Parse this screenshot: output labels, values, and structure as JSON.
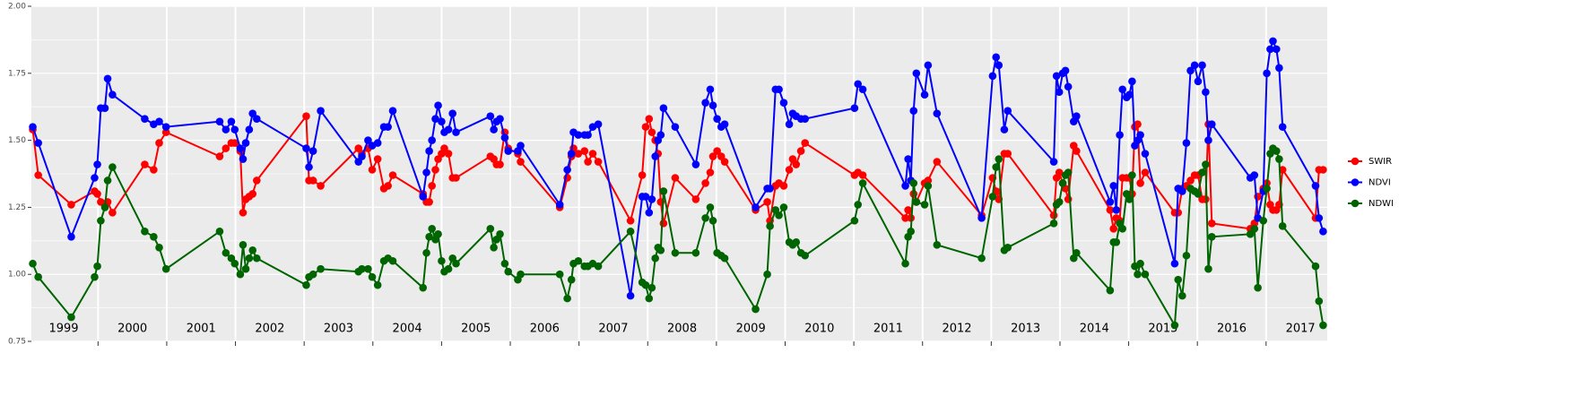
{
  "chart_data": {
    "type": "line",
    "x": [
      1999.05,
      1999.13,
      1999.61,
      1999.95,
      1999.99,
      2000.04,
      2000.1,
      2000.14,
      2000.21,
      2000.68,
      2000.81,
      2000.89,
      2000.99,
      2001.77,
      2001.86,
      2001.94,
      2001.99,
      2002.07,
      2002.11,
      2002.15,
      2002.2,
      2002.25,
      2002.31,
      2003.03,
      2003.07,
      2003.13,
      2003.24,
      2003.79,
      2003.84,
      2003.93,
      2003.99,
      2004.07,
      2004.16,
      2004.22,
      2004.29,
      2004.73,
      2004.78,
      2004.82,
      2004.86,
      2004.91,
      2004.95,
      2005.0,
      2005.04,
      2005.1,
      2005.16,
      2005.21,
      2005.71,
      2005.76,
      2005.8,
      2005.85,
      2005.92,
      2005.97,
      2006.11,
      2006.15,
      2006.72,
      2006.83,
      2006.89,
      2006.92,
      2006.99,
      2007.08,
      2007.13,
      2007.2,
      2007.28,
      2007.75,
      2007.92,
      2007.97,
      2008.02,
      2008.06,
      2008.11,
      2008.15,
      2008.19,
      2008.23,
      2008.4,
      2008.7,
      2008.84,
      2008.91,
      2008.95,
      2009.01,
      2009.07,
      2009.12,
      2009.57,
      2009.74,
      2009.78,
      2009.86,
      2009.91,
      2009.98,
      2010.06,
      2010.11,
      2010.16,
      2010.23,
      2010.29,
      2011.01,
      2011.06,
      2011.13,
      2011.75,
      2011.79,
      2011.83,
      2011.87,
      2011.91,
      2012.03,
      2012.08,
      2012.21,
      2012.86,
      2013.02,
      2013.07,
      2013.11,
      2013.19,
      2013.24,
      2013.91,
      2013.95,
      2013.99,
      2014.04,
      2014.08,
      2014.12,
      2014.2,
      2014.24,
      2014.73,
      2014.78,
      2014.82,
      2014.87,
      2014.91,
      2014.97,
      2015.01,
      2015.05,
      2015.09,
      2015.13,
      2015.17,
      2015.24,
      2015.67,
      2015.72,
      2015.78,
      2015.84,
      2015.9,
      2015.96,
      2016.01,
      2016.07,
      2016.12,
      2016.16,
      2016.21,
      2016.77,
      2016.83,
      2016.88,
      2016.96,
      2017.01,
      2017.06,
      2017.1,
      2017.15,
      2017.19,
      2017.24,
      2017.72,
      2017.77,
      2017.83
    ],
    "series": [
      {
        "name": "SWIR",
        "color": "#ff0000",
        "values": [
          1.54,
          1.37,
          1.26,
          1.31,
          1.3,
          1.27,
          1.26,
          1.27,
          1.23,
          1.41,
          1.39,
          1.49,
          1.53,
          1.44,
          1.47,
          1.49,
          1.49,
          1.46,
          1.23,
          1.28,
          1.29,
          1.3,
          1.35,
          1.59,
          1.35,
          1.35,
          1.33,
          1.47,
          1.45,
          1.47,
          1.39,
          1.43,
          1.32,
          1.33,
          1.37,
          1.3,
          1.27,
          1.27,
          1.33,
          1.39,
          1.43,
          1.45,
          1.47,
          1.45,
          1.36,
          1.36,
          1.44,
          1.43,
          1.41,
          1.41,
          1.53,
          1.47,
          1.45,
          1.42,
          1.25,
          1.36,
          1.44,
          1.47,
          1.45,
          1.46,
          1.42,
          1.45,
          1.42,
          1.2,
          1.37,
          1.55,
          1.58,
          1.53,
          1.5,
          1.45,
          1.27,
          1.19,
          1.36,
          1.28,
          1.34,
          1.38,
          1.44,
          1.46,
          1.44,
          1.42,
          1.24,
          1.27,
          1.2,
          1.33,
          1.34,
          1.33,
          1.39,
          1.43,
          1.41,
          1.46,
          1.49,
          1.37,
          1.38,
          1.37,
          1.21,
          1.24,
          1.21,
          1.3,
          1.27,
          1.34,
          1.35,
          1.42,
          1.22,
          1.36,
          1.31,
          1.28,
          1.45,
          1.45,
          1.22,
          1.36,
          1.38,
          1.34,
          1.32,
          1.28,
          1.48,
          1.46,
          1.24,
          1.17,
          1.21,
          1.2,
          1.36,
          1.36,
          1.36,
          1.3,
          1.55,
          1.56,
          1.34,
          1.38,
          1.23,
          1.23,
          1.32,
          1.33,
          1.35,
          1.37,
          1.37,
          1.28,
          1.28,
          1.56,
          1.19,
          1.17,
          1.19,
          1.29,
          1.32,
          1.34,
          1.26,
          1.24,
          1.24,
          1.26,
          1.39,
          1.21,
          1.39,
          1.39
        ]
      },
      {
        "name": "NDVI",
        "color": "#0000ff",
        "values": [
          1.55,
          1.49,
          1.14,
          1.36,
          1.41,
          1.62,
          1.62,
          1.73,
          1.67,
          1.58,
          1.56,
          1.57,
          1.55,
          1.57,
          1.54,
          1.57,
          1.54,
          1.47,
          1.43,
          1.49,
          1.54,
          1.6,
          1.58,
          1.47,
          1.4,
          1.46,
          1.61,
          1.42,
          1.44,
          1.5,
          1.48,
          1.49,
          1.55,
          1.55,
          1.61,
          1.29,
          1.38,
          1.46,
          1.5,
          1.58,
          1.63,
          1.57,
          1.53,
          1.54,
          1.6,
          1.53,
          1.59,
          1.54,
          1.57,
          1.58,
          1.51,
          1.46,
          1.46,
          1.48,
          1.26,
          1.39,
          1.45,
          1.53,
          1.52,
          1.52,
          1.52,
          1.55,
          1.56,
          0.92,
          1.29,
          1.29,
          1.23,
          1.28,
          1.44,
          1.5,
          1.52,
          1.62,
          1.55,
          1.41,
          1.64,
          1.69,
          1.63,
          1.58,
          1.55,
          1.56,
          1.25,
          1.32,
          1.32,
          1.69,
          1.69,
          1.64,
          1.56,
          1.6,
          1.59,
          1.58,
          1.58,
          1.62,
          1.71,
          1.69,
          1.33,
          1.43,
          1.35,
          1.61,
          1.75,
          1.67,
          1.78,
          1.6,
          1.21,
          1.74,
          1.81,
          1.78,
          1.54,
          1.61,
          1.42,
          1.74,
          1.68,
          1.75,
          1.76,
          1.7,
          1.57,
          1.59,
          1.27,
          1.33,
          1.24,
          1.52,
          1.69,
          1.66,
          1.67,
          1.72,
          1.48,
          1.5,
          1.52,
          1.45,
          1.04,
          1.32,
          1.31,
          1.49,
          1.76,
          1.78,
          1.72,
          1.78,
          1.68,
          1.5,
          1.56,
          1.36,
          1.37,
          1.21,
          1.31,
          1.75,
          1.84,
          1.87,
          1.84,
          1.77,
          1.55,
          1.33,
          1.21,
          1.16
        ]
      },
      {
        "name": "NDWI",
        "color": "#006400",
        "values": [
          1.04,
          0.99,
          0.84,
          0.99,
          1.03,
          1.2,
          1.25,
          1.35,
          1.4,
          1.16,
          1.14,
          1.1,
          1.02,
          1.16,
          1.08,
          1.06,
          1.04,
          1.0,
          1.11,
          1.02,
          1.06,
          1.09,
          1.06,
          0.96,
          0.99,
          1.0,
          1.02,
          1.01,
          1.02,
          1.02,
          0.99,
          0.96,
          1.05,
          1.06,
          1.05,
          0.95,
          1.08,
          1.14,
          1.17,
          1.13,
          1.15,
          1.05,
          1.01,
          1.02,
          1.06,
          1.04,
          1.17,
          1.1,
          1.13,
          1.15,
          1.04,
          1.01,
          0.98,
          1.0,
          1.0,
          0.91,
          0.98,
          1.04,
          1.05,
          1.03,
          1.03,
          1.04,
          1.03,
          1.16,
          0.97,
          0.96,
          0.91,
          0.95,
          1.06,
          1.1,
          1.09,
          1.31,
          1.08,
          1.08,
          1.21,
          1.25,
          1.2,
          1.08,
          1.07,
          1.06,
          0.87,
          1.0,
          1.18,
          1.24,
          1.22,
          1.25,
          1.12,
          1.11,
          1.12,
          1.08,
          1.07,
          1.2,
          1.26,
          1.34,
          1.04,
          1.14,
          1.16,
          1.34,
          1.27,
          1.26,
          1.33,
          1.11,
          1.06,
          1.29,
          1.4,
          1.43,
          1.09,
          1.1,
          1.19,
          1.26,
          1.27,
          1.34,
          1.37,
          1.38,
          1.06,
          1.08,
          0.94,
          1.12,
          1.12,
          1.19,
          1.17,
          1.3,
          1.28,
          1.37,
          1.03,
          1.0,
          1.04,
          1.0,
          0.81,
          0.98,
          0.92,
          1.07,
          1.32,
          1.31,
          1.3,
          1.38,
          1.41,
          1.02,
          1.14,
          1.15,
          1.17,
          0.95,
          1.2,
          1.32,
          1.45,
          1.47,
          1.46,
          1.43,
          1.18,
          1.03,
          0.9,
          0.81
        ]
      }
    ],
    "xlim": [
      1999.03,
      2017.89
    ],
    "xticks": [
      {
        "value": 1999.5,
        "label": "1999"
      },
      {
        "value": 2000.5,
        "label": "2000"
      },
      {
        "value": 2001.5,
        "label": "2001"
      },
      {
        "value": 2002.5,
        "label": "2002"
      },
      {
        "value": 2003.5,
        "label": "2003"
      },
      {
        "value": 2004.5,
        "label": "2004"
      },
      {
        "value": 2005.5,
        "label": "2005"
      },
      {
        "value": 2006.5,
        "label": "2006"
      },
      {
        "value": 2007.5,
        "label": "2007"
      },
      {
        "value": 2008.5,
        "label": "2008"
      },
      {
        "value": 2009.5,
        "label": "2009"
      },
      {
        "value": 2010.5,
        "label": "2010"
      },
      {
        "value": 2011.5,
        "label": "2011"
      },
      {
        "value": 2012.5,
        "label": "2012"
      },
      {
        "value": 2013.5,
        "label": "2013"
      },
      {
        "value": 2014.5,
        "label": "2014"
      },
      {
        "value": 2015.5,
        "label": "2015"
      },
      {
        "value": 2016.5,
        "label": "2016"
      },
      {
        "value": 2017.5,
        "label": "2017"
      }
    ],
    "ylim": [
      0.75,
      2.0
    ],
    "yticks": [
      {
        "value": 0.75,
        "label": "0.75"
      },
      {
        "value": 1.0,
        "label": "1.00"
      },
      {
        "value": 1.25,
        "label": "1.25"
      },
      {
        "value": 1.5,
        "label": "1.50"
      },
      {
        "value": 1.75,
        "label": "1.75"
      },
      {
        "value": 2.0,
        "label": "2.00"
      }
    ],
    "grid": true,
    "legend": "right"
  }
}
